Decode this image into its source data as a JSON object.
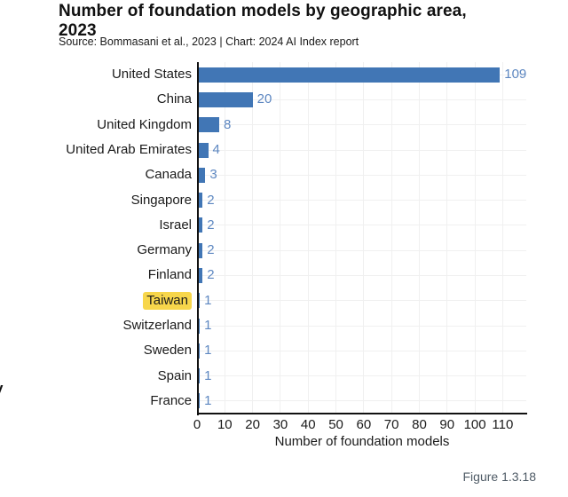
{
  "page": {
    "title_line1": "Number of foundation models by geographic area,",
    "title_line2": "2023",
    "subtitle": "Source: Bommasani et al., 2023 | Chart: 2024 AI Index report",
    "figure_caption": "Figure 1.3.18",
    "edge_fragment": "y"
  },
  "colors": {
    "bar": "#4176b5",
    "value_label": "#5d87c1",
    "highlight": "#f7d64b",
    "axis": "#111111",
    "gridline": "#f0f0f0",
    "caption": "#4f5b66"
  },
  "chart_data": {
    "type": "bar",
    "orientation": "horizontal",
    "title": "Number of foundation models by geographic area, 2023",
    "subtitle": "Source: Bommasani et al., 2023 | Chart: 2024 AI Index report",
    "categories": [
      "United States",
      "China",
      "United Kingdom",
      "United Arab Emirates",
      "Canada",
      "Singapore",
      "Israel",
      "Germany",
      "Finland",
      "Taiwan",
      "Switzerland",
      "Sweden",
      "Spain",
      "France"
    ],
    "values": [
      109,
      20,
      8,
      4,
      3,
      2,
      2,
      2,
      2,
      1,
      1,
      1,
      1,
      1
    ],
    "highlighted_category": "Taiwan",
    "xlabel": "Number of foundation models",
    "ylabel": "",
    "xlim": [
      0,
      118.5
    ],
    "xticks": [
      0,
      10,
      20,
      30,
      40,
      50,
      60,
      70,
      80,
      90,
      100,
      110
    ],
    "grid": true,
    "data_labels": true,
    "legend": false
  }
}
